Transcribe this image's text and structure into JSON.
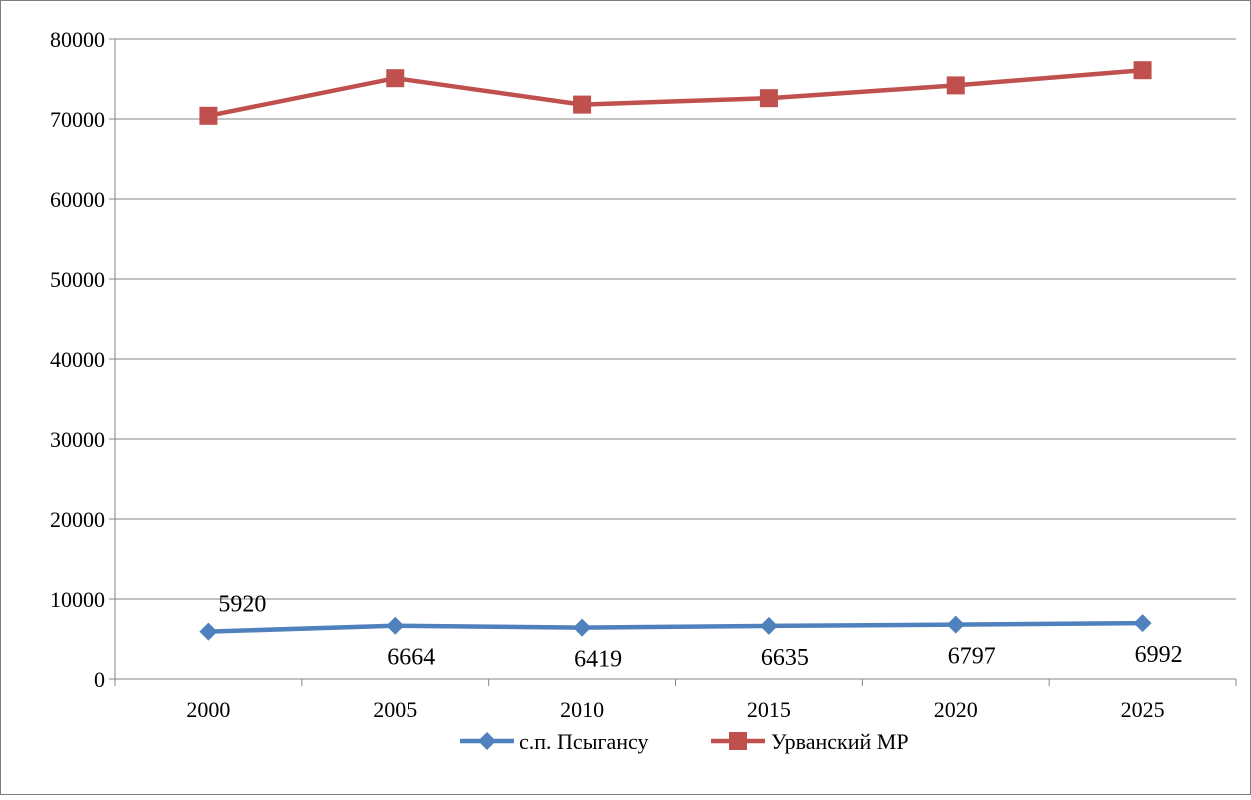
{
  "chart_data": {
    "type": "line",
    "title": "",
    "xlabel": "",
    "ylabel": "",
    "categories": [
      "2000",
      "2005",
      "2010",
      "2015",
      "2020",
      "2025"
    ],
    "ylim": [
      0,
      80000
    ],
    "yticks": [
      0,
      10000,
      20000,
      30000,
      40000,
      50000,
      60000,
      70000,
      80000
    ],
    "ytick_labels": [
      "0",
      "10000",
      "20000",
      "30000",
      "40000",
      "50000",
      "60000",
      "70000",
      "80000"
    ],
    "grid": "horizontal",
    "legend_position": "bottom",
    "series": [
      {
        "name": "с.п. Псыгансу",
        "values": [
          5920,
          6664,
          6419,
          6635,
          6797,
          6992
        ],
        "data_labels": [
          "5920",
          "6664",
          "6419",
          "6635",
          "6797",
          "6992"
        ],
        "color": "#4F81BD",
        "marker": "diamond"
      },
      {
        "name": "Урванский МР",
        "values": [
          70400,
          75100,
          71800,
          72600,
          74200,
          76100
        ],
        "color": "#C0504D",
        "marker": "square"
      }
    ]
  }
}
